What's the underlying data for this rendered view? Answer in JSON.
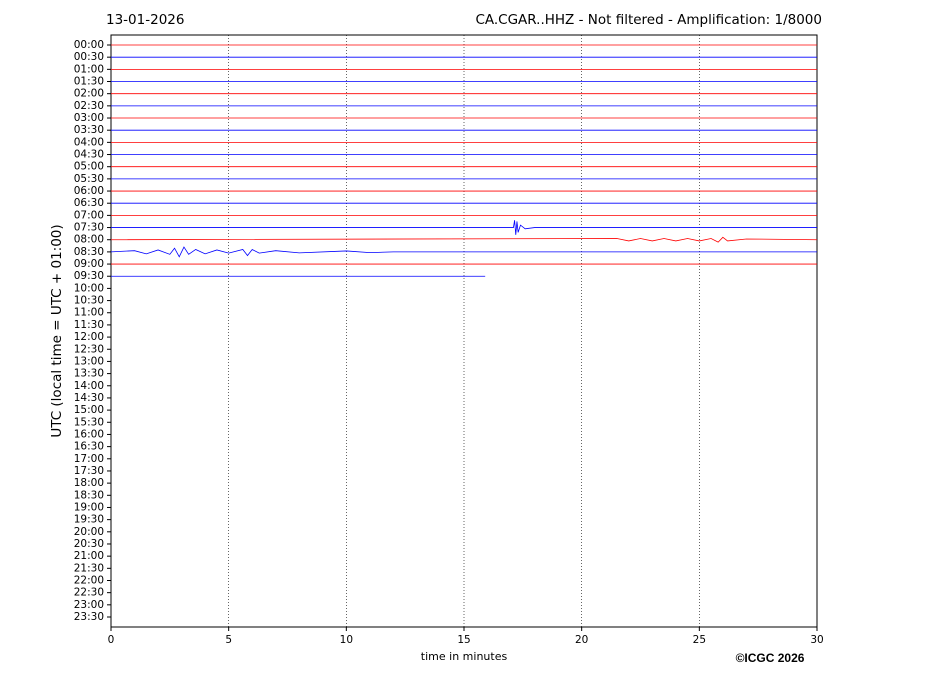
{
  "chart_data": {
    "type": "helicorder",
    "date": "13-01-2026",
    "title": "CA.CGAR..HHZ - Not filtered - Amplification: 1/8000",
    "ylabel": "UTC (local time = UTC + 01:00)",
    "xlabel": "time in minutes",
    "copyright": "©ICGC 2026",
    "xlim": [
      0,
      30
    ],
    "xticks": [
      0,
      5,
      10,
      15,
      20,
      25,
      30
    ],
    "grid": true,
    "categories": [
      "00:00",
      "00:30",
      "01:00",
      "01:30",
      "02:00",
      "02:30",
      "03:00",
      "03:30",
      "04:00",
      "04:30",
      "05:00",
      "05:30",
      "06:00",
      "06:30",
      "07:00",
      "07:30",
      "08:00",
      "08:30",
      "09:00",
      "09:30",
      "10:00",
      "10:30",
      "11:00",
      "11:30",
      "12:00",
      "12:30",
      "13:00",
      "13:30",
      "14:00",
      "14:30",
      "15:00",
      "15:30",
      "16:00",
      "16:30",
      "17:00",
      "17:30",
      "18:00",
      "18:30",
      "19:00",
      "19:30",
      "20:00",
      "20:30",
      "21:00",
      "21:30",
      "22:00",
      "22:30",
      "23:00",
      "23:30"
    ],
    "series": [
      {
        "color": "#ff0000",
        "x": [
          0,
          30
        ],
        "values": [
          0,
          0
        ]
      },
      {
        "color": "#0000ff",
        "x": [
          0,
          30
        ],
        "values": [
          0,
          0
        ]
      },
      {
        "color": "#ff0000",
        "x": [
          0,
          30
        ],
        "values": [
          0,
          0
        ]
      },
      {
        "color": "#0000ff",
        "x": [
          0,
          30
        ],
        "values": [
          0,
          0
        ]
      },
      {
        "color": "#ff0000",
        "x": [
          0,
          30
        ],
        "values": [
          0,
          0
        ]
      },
      {
        "color": "#0000ff",
        "x": [
          0,
          30
        ],
        "values": [
          0,
          0
        ]
      },
      {
        "color": "#ff0000",
        "x": [
          0,
          30
        ],
        "values": [
          0,
          0
        ]
      },
      {
        "color": "#0000ff",
        "x": [
          0,
          30
        ],
        "values": [
          0,
          0
        ]
      },
      {
        "color": "#ff0000",
        "x": [
          0,
          30
        ],
        "values": [
          0,
          0
        ]
      },
      {
        "color": "#0000ff",
        "x": [
          0,
          30
        ],
        "values": [
          0,
          0
        ]
      },
      {
        "color": "#ff0000",
        "x": [
          0,
          30
        ],
        "values": [
          0,
          0
        ]
      },
      {
        "color": "#0000ff",
        "x": [
          0,
          30
        ],
        "values": [
          0,
          0
        ]
      },
      {
        "color": "#ff0000",
        "x": [
          0,
          30
        ],
        "values": [
          0,
          0
        ]
      },
      {
        "color": "#0000ff",
        "x": [
          0,
          30
        ],
        "values": [
          0,
          0
        ]
      },
      {
        "color": "#ff0000",
        "x": [
          0,
          30
        ],
        "values": [
          0,
          0
        ]
      },
      {
        "color": "#0000ff",
        "x": [
          0,
          17.1,
          17.15,
          17.2,
          17.25,
          17.3,
          17.4,
          17.6,
          18,
          30
        ],
        "values": [
          0,
          0,
          0.3,
          -0.3,
          0.25,
          -0.2,
          0.1,
          -0.05,
          0,
          0
        ]
      },
      {
        "color": "#ff0000",
        "x": [
          0,
          21.5,
          22,
          22.5,
          23,
          23.5,
          24,
          24.5,
          25,
          25.5,
          25.8,
          26,
          26.2,
          27,
          30
        ],
        "values": [
          0,
          0.05,
          -0.05,
          0.05,
          -0.05,
          0.05,
          -0.05,
          0.05,
          -0.05,
          0.05,
          -0.1,
          0.1,
          -0.05,
          0.03,
          0
        ]
      },
      {
        "color": "#0000ff",
        "x": [
          0,
          1,
          1.5,
          2,
          2.5,
          2.7,
          2.9,
          3.1,
          3.3,
          3.6,
          4,
          4.5,
          5,
          5.6,
          5.8,
          6,
          6.3,
          7,
          8,
          10,
          11,
          12,
          30
        ],
        "values": [
          0,
          0.05,
          -0.08,
          0.08,
          -0.1,
          0.15,
          -0.2,
          0.2,
          -0.1,
          0.1,
          -0.08,
          0.08,
          -0.05,
          0.1,
          -0.15,
          0.1,
          -0.05,
          0.05,
          -0.04,
          0.04,
          -0.03,
          0,
          0
        ]
      },
      {
        "color": "#ff0000",
        "x": [
          0,
          30
        ],
        "values": [
          0,
          0
        ]
      },
      {
        "color": "#0000ff",
        "x": [
          0,
          15.9
        ],
        "values": [
          0,
          0
        ]
      }
    ]
  }
}
